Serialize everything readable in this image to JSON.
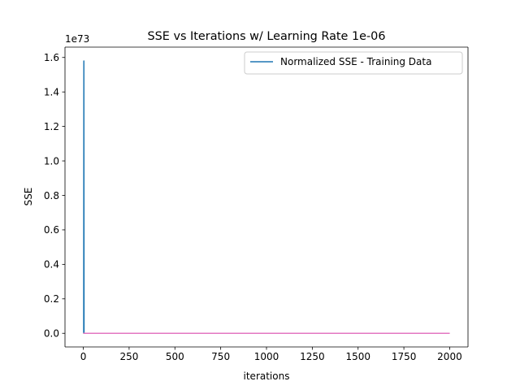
{
  "chart_data": {
    "type": "line",
    "title": "SSE vs Iterations w/ Learning Rate 1e-06",
    "xlabel": "iterations",
    "ylabel": "SSE",
    "y_offset_label": "1e73",
    "xlim": [
      -100,
      2100
    ],
    "ylim": [
      -0.079,
      1.66
    ],
    "x_ticks": [
      0,
      250,
      500,
      750,
      1000,
      1250,
      1500,
      1750,
      2000
    ],
    "x_tick_labels": [
      "0",
      "250",
      "500",
      "750",
      "1000",
      "1250",
      "1500",
      "1750",
      "2000"
    ],
    "y_ticks": [
      0.0,
      0.2,
      0.4,
      0.6,
      0.8,
      1.0,
      1.2,
      1.4,
      1.6
    ],
    "y_tick_labels": [
      "0.0",
      "0.2",
      "0.4",
      "0.6",
      "0.8",
      "1.0",
      "1.2",
      "1.4",
      "1.6"
    ],
    "grid": false,
    "legend_position": "top-right",
    "legend_entries": [
      "Normalized SSE - Training Data"
    ],
    "series": [
      {
        "name": "Normalized SSE - Training Data",
        "color": "#1f77b4",
        "x": [
          0,
          1,
          2,
          3,
          4,
          5,
          2000
        ],
        "y": [
          0,
          0,
          0,
          1.58,
          0,
          0,
          0
        ]
      },
      {
        "color": "#ff7f0e",
        "x": [
          0,
          2000
        ],
        "y": [
          0,
          0
        ]
      },
      {
        "color": "#2ca02c",
        "x": [
          0,
          2000
        ],
        "y": [
          0,
          0
        ]
      },
      {
        "color": "#d62728",
        "x": [
          0,
          2000
        ],
        "y": [
          0,
          0
        ]
      },
      {
        "color": "#9467bd",
        "x": [
          0,
          2000
        ],
        "y": [
          0,
          0
        ]
      },
      {
        "color": "#8c564b",
        "x": [
          0,
          2000
        ],
        "y": [
          0,
          0
        ]
      },
      {
        "color": "#e377c2",
        "x": [
          0,
          2000
        ],
        "y": [
          0,
          0
        ]
      }
    ]
  }
}
